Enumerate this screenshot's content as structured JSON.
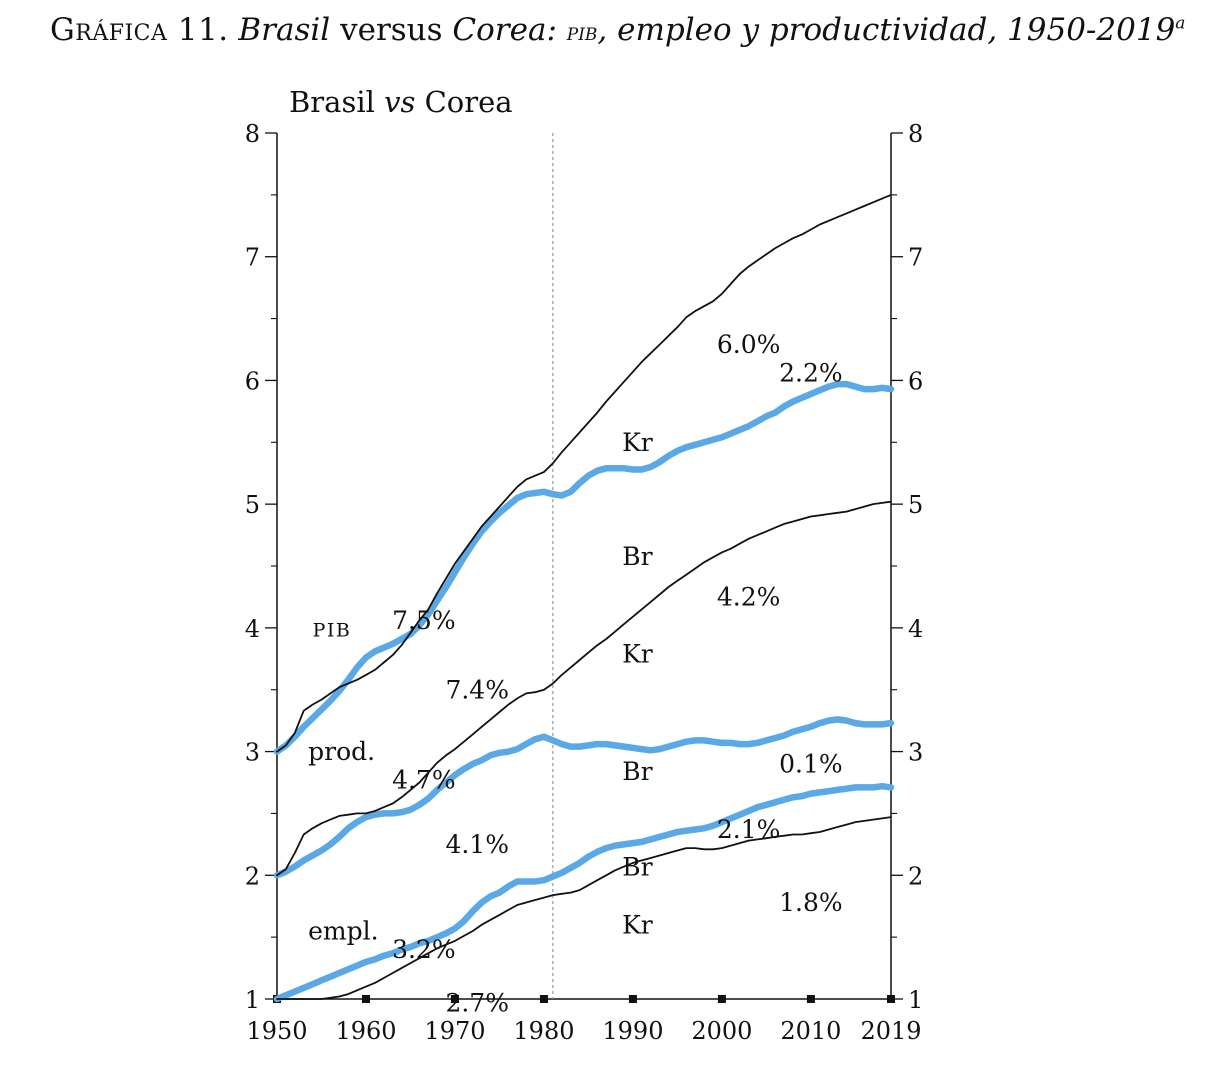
{
  "figure": {
    "label": "Gráfica 11.",
    "title_part1": "Brasil",
    "title_part2": "versus",
    "title_part3": "Corea:",
    "title_part4": "pib",
    "title_part5": ", empleo y productividad, 1950-2019",
    "title_sup": "a"
  },
  "chart_data": {
    "type": "line",
    "title": "Brasil vs Corea",
    "xlim": [
      1950,
      2019
    ],
    "ylim": [
      1,
      8
    ],
    "x_ticks": [
      1950,
      1960,
      1970,
      1980,
      1990,
      2000,
      2010,
      2019
    ],
    "y_ticks": [
      1,
      2,
      3,
      4,
      5,
      6,
      7,
      8
    ],
    "grid": false,
    "reference_line_x": 1981,
    "groups": [
      {
        "label": "pib",
        "label_pos": [
          1954,
          3.93
        ]
      },
      {
        "label": "prod.",
        "label_pos": [
          1953.5,
          2.93
        ]
      },
      {
        "label": "empl.",
        "label_pos": [
          1953.5,
          1.48
        ]
      }
    ],
    "series": [
      {
        "name": "pib-kr",
        "label": "Kr",
        "color": "#111111",
        "style": "thin",
        "x": [
          1950,
          1951,
          1952,
          1953,
          1954,
          1955,
          1956,
          1957,
          1958,
          1959,
          1960,
          1961,
          1962,
          1963,
          1964,
          1965,
          1966,
          1967,
          1968,
          1969,
          1970,
          1971,
          1972,
          1973,
          1974,
          1975,
          1976,
          1977,
          1978,
          1979,
          1980,
          1981,
          1982,
          1983,
          1984,
          1985,
          1986,
          1987,
          1988,
          1989,
          1990,
          1991,
          1992,
          1993,
          1994,
          1995,
          1996,
          1997,
          1998,
          1999,
          2000,
          2001,
          2002,
          2003,
          2004,
          2005,
          2006,
          2007,
          2008,
          2009,
          2010,
          2011,
          2012,
          2013,
          2014,
          2015,
          2016,
          2017,
          2018,
          2019
        ],
        "y": [
          3.0,
          3.05,
          3.15,
          3.33,
          3.38,
          3.42,
          3.47,
          3.52,
          3.55,
          3.58,
          3.62,
          3.66,
          3.72,
          3.78,
          3.86,
          3.96,
          4.06,
          4.15,
          4.28,
          4.4,
          4.52,
          4.62,
          4.72,
          4.82,
          4.9,
          4.98,
          5.06,
          5.14,
          5.2,
          5.23,
          5.26,
          5.33,
          5.42,
          5.5,
          5.58,
          5.66,
          5.74,
          5.83,
          5.91,
          5.99,
          6.07,
          6.15,
          6.22,
          6.29,
          6.36,
          6.43,
          6.51,
          6.56,
          6.6,
          6.64,
          6.7,
          6.78,
          6.86,
          6.92,
          6.97,
          7.02,
          7.07,
          7.11,
          7.15,
          7.18,
          7.22,
          7.26,
          7.29,
          7.32,
          7.35,
          7.38,
          7.41,
          7.44,
          7.47,
          7.5
        ]
      },
      {
        "name": "pib-br",
        "label": "Br",
        "color": "#5aa9e6",
        "style": "thick",
        "x": [
          1950,
          1951,
          1952,
          1953,
          1954,
          1955,
          1956,
          1957,
          1958,
          1959,
          1960,
          1961,
          1962,
          1963,
          1964,
          1965,
          1966,
          1967,
          1968,
          1969,
          1970,
          1971,
          1972,
          1973,
          1974,
          1975,
          1976,
          1977,
          1978,
          1979,
          1980,
          1981,
          1982,
          1983,
          1984,
          1985,
          1986,
          1987,
          1988,
          1989,
          1990,
          1991,
          1992,
          1993,
          1994,
          1995,
          1996,
          1997,
          1998,
          1999,
          2000,
          2001,
          2002,
          2003,
          2004,
          2005,
          2006,
          2007,
          2008,
          2009,
          2010,
          2011,
          2012,
          2013,
          2014,
          2015,
          2016,
          2017,
          2018,
          2019
        ],
        "y": [
          3.0,
          3.05,
          3.12,
          3.2,
          3.27,
          3.34,
          3.41,
          3.49,
          3.58,
          3.68,
          3.76,
          3.81,
          3.84,
          3.87,
          3.91,
          3.95,
          4.02,
          4.11,
          4.22,
          4.33,
          4.45,
          4.57,
          4.68,
          4.78,
          4.86,
          4.93,
          4.99,
          5.05,
          5.08,
          5.09,
          5.1,
          5.08,
          5.07,
          5.1,
          5.17,
          5.23,
          5.27,
          5.29,
          5.29,
          5.29,
          5.28,
          5.28,
          5.3,
          5.34,
          5.39,
          5.43,
          5.46,
          5.48,
          5.5,
          5.52,
          5.54,
          5.57,
          5.6,
          5.63,
          5.67,
          5.71,
          5.74,
          5.79,
          5.83,
          5.86,
          5.89,
          5.92,
          5.95,
          5.97,
          5.97,
          5.95,
          5.93,
          5.93,
          5.94,
          5.93
        ]
      },
      {
        "name": "prod-kr",
        "label": "Kr",
        "color": "#111111",
        "style": "thin",
        "x": [
          1950,
          1951,
          1952,
          1953,
          1954,
          1955,
          1956,
          1957,
          1958,
          1959,
          1960,
          1961,
          1962,
          1963,
          1964,
          1965,
          1966,
          1967,
          1968,
          1969,
          1970,
          1971,
          1972,
          1973,
          1974,
          1975,
          1976,
          1977,
          1978,
          1979,
          1980,
          1981,
          1982,
          1983,
          1984,
          1985,
          1986,
          1987,
          1988,
          1989,
          1990,
          1991,
          1992,
          1993,
          1994,
          1995,
          1996,
          1997,
          1998,
          1999,
          2000,
          2001,
          2002,
          2003,
          2004,
          2005,
          2006,
          2007,
          2008,
          2009,
          2010,
          2011,
          2012,
          2013,
          2014,
          2015,
          2016,
          2017,
          2018,
          2019
        ],
        "y": [
          2.0,
          2.05,
          2.18,
          2.33,
          2.38,
          2.42,
          2.45,
          2.48,
          2.49,
          2.5,
          2.5,
          2.52,
          2.55,
          2.58,
          2.63,
          2.69,
          2.75,
          2.83,
          2.91,
          2.97,
          3.02,
          3.08,
          3.14,
          3.2,
          3.26,
          3.32,
          3.38,
          3.43,
          3.47,
          3.48,
          3.5,
          3.55,
          3.62,
          3.68,
          3.74,
          3.8,
          3.86,
          3.91,
          3.97,
          4.03,
          4.09,
          4.15,
          4.21,
          4.27,
          4.33,
          4.38,
          4.43,
          4.48,
          4.53,
          4.57,
          4.61,
          4.64,
          4.68,
          4.72,
          4.75,
          4.78,
          4.81,
          4.84,
          4.86,
          4.88,
          4.9,
          4.91,
          4.92,
          4.93,
          4.94,
          4.96,
          4.98,
          5.0,
          5.01,
          5.02
        ]
      },
      {
        "name": "prod-br",
        "label": "Br",
        "color": "#5aa9e6",
        "style": "thick",
        "x": [
          1950,
          1951,
          1952,
          1953,
          1954,
          1955,
          1956,
          1957,
          1958,
          1959,
          1960,
          1961,
          1962,
          1963,
          1964,
          1965,
          1966,
          1967,
          1968,
          1969,
          1970,
          1971,
          1972,
          1973,
          1974,
          1975,
          1976,
          1977,
          1978,
          1979,
          1980,
          1981,
          1982,
          1983,
          1984,
          1985,
          1986,
          1987,
          1988,
          1989,
          1990,
          1991,
          1992,
          1993,
          1994,
          1995,
          1996,
          1997,
          1998,
          1999,
          2000,
          2001,
          2002,
          2003,
          2004,
          2005,
          2006,
          2007,
          2008,
          2009,
          2010,
          2011,
          2012,
          2013,
          2014,
          2015,
          2016,
          2017,
          2018,
          2019
        ],
        "y": [
          2.0,
          2.03,
          2.07,
          2.12,
          2.16,
          2.2,
          2.25,
          2.31,
          2.38,
          2.43,
          2.47,
          2.49,
          2.5,
          2.5,
          2.51,
          2.53,
          2.57,
          2.62,
          2.69,
          2.75,
          2.81,
          2.86,
          2.9,
          2.93,
          2.97,
          2.99,
          3.0,
          3.02,
          3.06,
          3.1,
          3.12,
          3.09,
          3.06,
          3.04,
          3.04,
          3.05,
          3.06,
          3.06,
          3.05,
          3.04,
          3.03,
          3.02,
          3.01,
          3.02,
          3.04,
          3.06,
          3.08,
          3.09,
          3.09,
          3.08,
          3.07,
          3.07,
          3.06,
          3.06,
          3.07,
          3.09,
          3.11,
          3.13,
          3.16,
          3.18,
          3.2,
          3.23,
          3.25,
          3.26,
          3.25,
          3.23,
          3.22,
          3.22,
          3.22,
          3.23
        ]
      },
      {
        "name": "empl-br",
        "label": "Br",
        "color": "#5aa9e6",
        "style": "thick",
        "x": [
          1950,
          1951,
          1952,
          1953,
          1954,
          1955,
          1956,
          1957,
          1958,
          1959,
          1960,
          1961,
          1962,
          1963,
          1964,
          1965,
          1966,
          1967,
          1968,
          1969,
          1970,
          1971,
          1972,
          1973,
          1974,
          1975,
          1976,
          1977,
          1978,
          1979,
          1980,
          1981,
          1982,
          1983,
          1984,
          1985,
          1986,
          1987,
          1988,
          1989,
          1990,
          1991,
          1992,
          1993,
          1994,
          1995,
          1996,
          1997,
          1998,
          1999,
          2000,
          2001,
          2002,
          2003,
          2004,
          2005,
          2006,
          2007,
          2008,
          2009,
          2010,
          2011,
          2012,
          2013,
          2014,
          2015,
          2016,
          2017,
          2018,
          2019
        ],
        "y": [
          1.0,
          1.03,
          1.06,
          1.09,
          1.12,
          1.15,
          1.18,
          1.21,
          1.24,
          1.27,
          1.3,
          1.32,
          1.35,
          1.37,
          1.4,
          1.42,
          1.45,
          1.47,
          1.5,
          1.53,
          1.57,
          1.63,
          1.71,
          1.78,
          1.83,
          1.86,
          1.91,
          1.95,
          1.95,
          1.95,
          1.96,
          1.99,
          2.02,
          2.06,
          2.1,
          2.15,
          2.19,
          2.22,
          2.24,
          2.25,
          2.26,
          2.27,
          2.29,
          2.31,
          2.33,
          2.35,
          2.36,
          2.37,
          2.38,
          2.4,
          2.43,
          2.46,
          2.49,
          2.52,
          2.55,
          2.57,
          2.59,
          2.61,
          2.63,
          2.64,
          2.66,
          2.67,
          2.68,
          2.69,
          2.7,
          2.71,
          2.71,
          2.71,
          2.72,
          2.71
        ]
      },
      {
        "name": "empl-kr",
        "label": "Kr",
        "color": "#111111",
        "style": "thin",
        "x": [
          1950,
          1951,
          1952,
          1953,
          1954,
          1955,
          1956,
          1957,
          1958,
          1959,
          1960,
          1961,
          1962,
          1963,
          1964,
          1965,
          1966,
          1967,
          1968,
          1969,
          1970,
          1971,
          1972,
          1973,
          1974,
          1975,
          1976,
          1977,
          1978,
          1979,
          1980,
          1981,
          1982,
          1983,
          1984,
          1985,
          1986,
          1987,
          1988,
          1989,
          1990,
          1991,
          1992,
          1993,
          1994,
          1995,
          1996,
          1997,
          1998,
          1999,
          2000,
          2001,
          2002,
          2003,
          2004,
          2005,
          2006,
          2007,
          2008,
          2009,
          2010,
          2011,
          2012,
          2013,
          2014,
          2015,
          2016,
          2017,
          2018,
          2019
        ],
        "y": [
          1.0,
          1.0,
          1.0,
          1.0,
          1.0,
          1.0,
          1.01,
          1.02,
          1.04,
          1.07,
          1.1,
          1.13,
          1.17,
          1.21,
          1.25,
          1.29,
          1.33,
          1.37,
          1.41,
          1.44,
          1.47,
          1.51,
          1.55,
          1.6,
          1.64,
          1.68,
          1.72,
          1.76,
          1.78,
          1.8,
          1.82,
          1.84,
          1.85,
          1.86,
          1.88,
          1.92,
          1.96,
          2.0,
          2.04,
          2.07,
          2.1,
          2.12,
          2.14,
          2.16,
          2.18,
          2.2,
          2.22,
          2.22,
          2.21,
          2.21,
          2.22,
          2.24,
          2.26,
          2.28,
          2.29,
          2.3,
          2.31,
          2.32,
          2.33,
          2.33,
          2.34,
          2.35,
          2.37,
          2.39,
          2.41,
          2.43,
          2.44,
          2.45,
          2.46,
          2.47
        ]
      }
    ],
    "annotations": [
      {
        "text": "6.0%",
        "x": 2003,
        "y": 6.22
      },
      {
        "text": "Kr",
        "x": 1990.5,
        "y": 5.43
      },
      {
        "text": "2.2%",
        "x": 2010,
        "y": 5.99
      },
      {
        "text": "Br",
        "x": 1990.5,
        "y": 4.51
      },
      {
        "text": "7.5%",
        "x": 1966.5,
        "y": 3.99
      },
      {
        "text": "7.4%",
        "x": 1972.5,
        "y": 3.43
      },
      {
        "text": "4.2%",
        "x": 2003,
        "y": 4.18
      },
      {
        "text": "Kr",
        "x": 1990.5,
        "y": 3.72
      },
      {
        "text": "0.1%",
        "x": 2010,
        "y": 2.83
      },
      {
        "text": "Br",
        "x": 1990.5,
        "y": 2.77
      },
      {
        "text": "4.7%",
        "x": 1966.5,
        "y": 2.7
      },
      {
        "text": "4.1%",
        "x": 1972.5,
        "y": 2.18
      },
      {
        "text": "2.1%",
        "x": 2003,
        "y": 2.3
      },
      {
        "text": "Br",
        "x": 1990.5,
        "y": 2.0
      },
      {
        "text": "1.8%",
        "x": 2010,
        "y": 1.71
      },
      {
        "text": "Kr",
        "x": 1990.5,
        "y": 1.53
      },
      {
        "text": "3.2%",
        "x": 1966.5,
        "y": 1.33
      },
      {
        "text": "2.7%",
        "x": 1972.5,
        "y": 0.9
      }
    ]
  }
}
